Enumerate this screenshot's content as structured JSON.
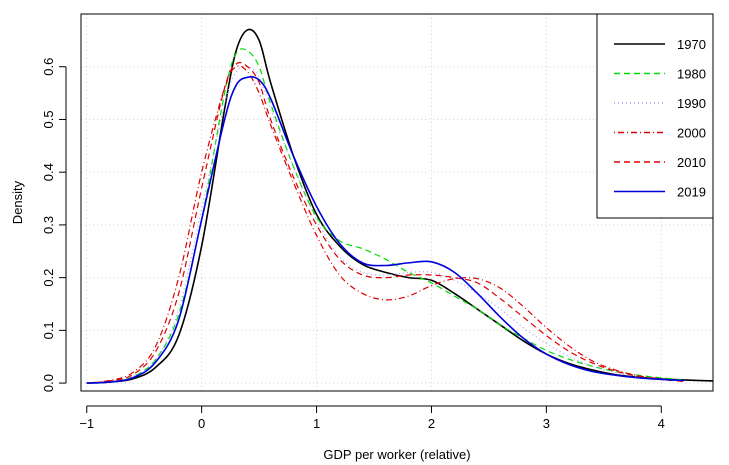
{
  "chart_data": {
    "type": "line",
    "title": "",
    "xlabel": "GDP per worker (relative)",
    "ylabel": "Density",
    "xlim": [
      -1.05,
      4.45
    ],
    "ylim": [
      -0.015,
      0.7
    ],
    "xticks": [
      -1,
      0,
      1,
      2,
      3,
      4
    ],
    "yticks": [
      0.0,
      0.1,
      0.2,
      0.3,
      0.4,
      0.5,
      0.6
    ],
    "xtick_labels": [
      "−1",
      "0",
      "1",
      "2",
      "3",
      "4"
    ],
    "ytick_labels": [
      "0.0",
      "0.1",
      "0.2",
      "0.3",
      "0.4",
      "0.5",
      "0.6"
    ],
    "grid": true,
    "legend_position": "top-right",
    "series": [
      {
        "name": "1970",
        "color": "#000000",
        "dash": "solid",
        "x": [
          -1.0,
          -0.8,
          -0.6,
          -0.4,
          -0.2,
          0.0,
          0.2,
          0.3,
          0.4,
          0.5,
          0.6,
          0.8,
          1.0,
          1.2,
          1.4,
          1.6,
          1.8,
          2.0,
          2.2,
          2.4,
          2.6,
          2.8,
          3.0,
          3.2,
          3.4,
          3.6,
          3.8,
          4.0,
          4.2,
          4.45
        ],
        "y": [
          0.0,
          0.002,
          0.008,
          0.03,
          0.09,
          0.26,
          0.52,
          0.63,
          0.67,
          0.65,
          0.57,
          0.43,
          0.32,
          0.26,
          0.225,
          0.21,
          0.2,
          0.195,
          0.17,
          0.14,
          0.11,
          0.08,
          0.055,
          0.037,
          0.025,
          0.016,
          0.011,
          0.008,
          0.006,
          0.004
        ]
      },
      {
        "name": "1980",
        "color": "#00dd00",
        "dash": "dashed",
        "x": [
          -1.0,
          -0.8,
          -0.6,
          -0.4,
          -0.2,
          0.0,
          0.2,
          0.3,
          0.4,
          0.5,
          0.6,
          0.8,
          1.0,
          1.2,
          1.4,
          1.6,
          1.8,
          2.0,
          2.2,
          2.4,
          2.6,
          2.8,
          3.0,
          3.2,
          3.4,
          3.6,
          3.8,
          4.0,
          4.2
        ],
        "y": [
          0.0,
          0.003,
          0.012,
          0.045,
          0.13,
          0.31,
          0.55,
          0.625,
          0.63,
          0.6,
          0.53,
          0.41,
          0.315,
          0.27,
          0.255,
          0.235,
          0.21,
          0.19,
          0.165,
          0.14,
          0.11,
          0.085,
          0.062,
          0.045,
          0.032,
          0.022,
          0.015,
          0.01,
          0.006
        ]
      },
      {
        "name": "1990",
        "color": "#a0a0ff",
        "dash": "dotted",
        "x": [
          -1.0,
          -0.8,
          -0.6,
          -0.4,
          -0.2,
          0.0,
          0.2,
          0.3,
          0.4,
          0.5,
          0.6,
          0.8,
          1.0,
          1.2,
          1.4,
          1.6,
          1.8,
          2.0,
          2.2,
          2.4,
          2.6,
          2.8,
          3.0,
          3.2,
          3.4,
          3.6,
          3.8,
          4.0,
          4.2
        ],
        "y": [
          0.0,
          0.003,
          0.012,
          0.045,
          0.14,
          0.33,
          0.53,
          0.59,
          0.6,
          0.58,
          0.52,
          0.41,
          0.31,
          0.24,
          0.21,
          0.205,
          0.21,
          0.21,
          0.195,
          0.17,
          0.14,
          0.105,
          0.075,
          0.05,
          0.032,
          0.02,
          0.012,
          0.008,
          0.005
        ]
      },
      {
        "name": "2000",
        "color": "#dd0000",
        "dash": "dashdot",
        "x": [
          -1.0,
          -0.8,
          -0.6,
          -0.4,
          -0.2,
          0.0,
          0.2,
          0.3,
          0.4,
          0.5,
          0.6,
          0.8,
          1.0,
          1.2,
          1.4,
          1.6,
          1.8,
          2.0,
          2.2,
          2.4,
          2.6,
          2.8,
          3.0,
          3.2,
          3.4,
          3.6,
          3.8,
          4.0,
          4.2
        ],
        "y": [
          0.0,
          0.005,
          0.02,
          0.07,
          0.2,
          0.4,
          0.56,
          0.6,
          0.59,
          0.55,
          0.49,
          0.38,
          0.28,
          0.205,
          0.17,
          0.158,
          0.165,
          0.185,
          0.198,
          0.198,
          0.18,
          0.145,
          0.105,
          0.07,
          0.042,
          0.025,
          0.014,
          0.008,
          0.004
        ]
      },
      {
        "name": "2010",
        "color": "#dd0000",
        "dash": "dashed",
        "x": [
          -1.0,
          -0.8,
          -0.6,
          -0.4,
          -0.2,
          0.0,
          0.2,
          0.3,
          0.4,
          0.5,
          0.6,
          0.8,
          1.0,
          1.2,
          1.4,
          1.6,
          1.8,
          2.0,
          2.2,
          2.4,
          2.6,
          2.8,
          3.0,
          3.2,
          3.4,
          3.6,
          3.8,
          4.0,
          4.2
        ],
        "y": [
          0.0,
          0.004,
          0.016,
          0.06,
          0.17,
          0.37,
          0.56,
          0.605,
          0.6,
          0.57,
          0.5,
          0.39,
          0.3,
          0.235,
          0.205,
          0.2,
          0.205,
          0.205,
          0.2,
          0.19,
          0.16,
          0.125,
          0.09,
          0.06,
          0.038,
          0.023,
          0.013,
          0.007,
          0.003
        ]
      },
      {
        "name": "2019",
        "color": "#0000dd",
        "dash": "solid",
        "x": [
          -1.0,
          -0.8,
          -0.6,
          -0.4,
          -0.2,
          0.0,
          0.2,
          0.3,
          0.4,
          0.5,
          0.6,
          0.8,
          1.0,
          1.2,
          1.4,
          1.6,
          1.8,
          2.0,
          2.2,
          2.4,
          2.6,
          2.8,
          3.0,
          3.2,
          3.4,
          3.6,
          3.8,
          4.0,
          4.2
        ],
        "y": [
          0.0,
          0.002,
          0.01,
          0.04,
          0.12,
          0.31,
          0.5,
          0.565,
          0.58,
          0.575,
          0.54,
          0.43,
          0.335,
          0.265,
          0.228,
          0.223,
          0.228,
          0.23,
          0.21,
          0.17,
          0.125,
          0.085,
          0.055,
          0.035,
          0.022,
          0.015,
          0.01,
          0.007,
          0.005
        ]
      }
    ]
  }
}
